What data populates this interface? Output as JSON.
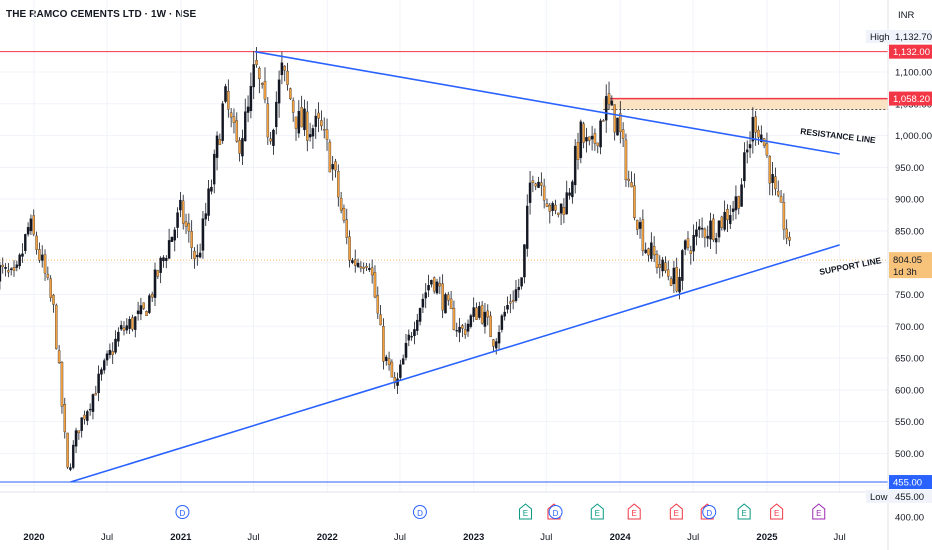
{
  "header": {
    "title": "THE RAMCO CEMENTS LTD · 1W · NSE",
    "currency": "INR"
  },
  "colors": {
    "up": "#131722",
    "down": "#f0a040",
    "trend": "#2962ff",
    "red": "#f23645",
    "zone_fill": "#fbe2c2",
    "axis_text": "#131722",
    "grid": "#f0f3fa"
  },
  "chart_data": {
    "type": "candlestick",
    "ylim": [
      394,
      1160
    ],
    "y_ticks": [
      400,
      450,
      500,
      550,
      600,
      650,
      700,
      750,
      800,
      850,
      900,
      950,
      1000,
      1050,
      1100
    ],
    "y_tick_labels": [
      "400.00",
      "450.00",
      "500.00",
      "550.00",
      "600.00",
      "650.00",
      "700.00",
      "750.00",
      "800.00",
      "850.00",
      "900.00",
      "950.00",
      "1,000.00",
      "1,050.00",
      "1,100.00"
    ],
    "x_ticks": [
      {
        "date": "2020-01-01",
        "label": "2020"
      },
      {
        "date": "2020-07-01",
        "label": "Jul"
      },
      {
        "date": "2021-01-01",
        "label": "2021"
      },
      {
        "date": "2021-07-01",
        "label": "Jul"
      },
      {
        "date": "2022-01-01",
        "label": "2022"
      },
      {
        "date": "2022-07-01",
        "label": "Jul"
      },
      {
        "date": "2023-01-01",
        "label": "2023"
      },
      {
        "date": "2023-07-01",
        "label": "Jul"
      },
      {
        "date": "2024-01-01",
        "label": "2024"
      },
      {
        "date": "2024-07-01",
        "label": "Jul"
      },
      {
        "date": "2025-01-01",
        "label": "2025"
      },
      {
        "date": "2025-07-01",
        "label": "Jul"
      }
    ],
    "price_path": [
      {
        "date": "2019-10-01",
        "price": 790
      },
      {
        "date": "2019-11-15",
        "price": 770
      },
      {
        "date": "2019-12-20",
        "price": 860
      },
      {
        "date": "2020-01-20",
        "price": 800
      },
      {
        "date": "2020-02-20",
        "price": 720
      },
      {
        "date": "2020-03-25",
        "price": 470
      },
      {
        "date": "2020-04-20",
        "price": 540
      },
      {
        "date": "2020-06-01",
        "price": 600
      },
      {
        "date": "2020-08-01",
        "price": 690
      },
      {
        "date": "2020-10-01",
        "price": 720
      },
      {
        "date": "2020-12-01",
        "price": 830
      },
      {
        "date": "2021-01-01",
        "price": 880
      },
      {
        "date": "2021-02-10",
        "price": 800
      },
      {
        "date": "2021-03-20",
        "price": 930
      },
      {
        "date": "2021-04-20",
        "price": 1060
      },
      {
        "date": "2021-05-20",
        "price": 980
      },
      {
        "date": "2021-06-20",
        "price": 1040
      },
      {
        "date": "2021-07-05",
        "price": 1110
      },
      {
        "date": "2021-08-10",
        "price": 1000
      },
      {
        "date": "2021-09-10",
        "price": 1100
      },
      {
        "date": "2021-10-20",
        "price": 1020
      },
      {
        "date": "2021-12-15",
        "price": 1010
      },
      {
        "date": "2022-01-15",
        "price": 950
      },
      {
        "date": "2022-03-01",
        "price": 800
      },
      {
        "date": "2022-04-15",
        "price": 810
      },
      {
        "date": "2022-05-20",
        "price": 660
      },
      {
        "date": "2022-06-20",
        "price": 600
      },
      {
        "date": "2022-08-10",
        "price": 720
      },
      {
        "date": "2022-09-20",
        "price": 780
      },
      {
        "date": "2022-11-01",
        "price": 720
      },
      {
        "date": "2022-12-01",
        "price": 690
      },
      {
        "date": "2023-01-15",
        "price": 730
      },
      {
        "date": "2023-02-20",
        "price": 680
      },
      {
        "date": "2023-04-01",
        "price": 740
      },
      {
        "date": "2023-05-01",
        "price": 770
      },
      {
        "date": "2023-05-25",
        "price": 950
      },
      {
        "date": "2023-06-25",
        "price": 920
      },
      {
        "date": "2023-07-20",
        "price": 870
      },
      {
        "date": "2023-08-20",
        "price": 900
      },
      {
        "date": "2023-09-25",
        "price": 1000
      },
      {
        "date": "2023-10-20",
        "price": 970
      },
      {
        "date": "2023-11-25",
        "price": 1050
      },
      {
        "date": "2023-12-25",
        "price": 1020
      },
      {
        "date": "2024-01-25",
        "price": 920
      },
      {
        "date": "2024-03-01",
        "price": 830
      },
      {
        "date": "2024-04-15",
        "price": 790
      },
      {
        "date": "2024-05-25",
        "price": 770
      },
      {
        "date": "2024-06-10",
        "price": 820
      },
      {
        "date": "2024-07-20",
        "price": 850
      },
      {
        "date": "2024-09-01",
        "price": 860
      },
      {
        "date": "2024-10-20",
        "price": 900
      },
      {
        "date": "2024-12-01",
        "price": 1030
      },
      {
        "date": "2024-12-20",
        "price": 1000
      },
      {
        "date": "2025-01-10",
        "price": 940
      },
      {
        "date": "2025-01-25",
        "price": 890
      },
      {
        "date": "2025-02-15",
        "price": 860
      },
      {
        "date": "2025-03-01",
        "price": 804
      }
    ],
    "drawings": {
      "resistance_line": {
        "label": "RESISTANCE LINE",
        "from": {
          "date": "2021-07-05",
          "price": 1132
        },
        "to": {
          "date": "2025-07-01",
          "price": 971
        }
      },
      "support_line": {
        "label": "SUPPORT LINE",
        "from": {
          "date": "2020-04-01",
          "price": 455
        },
        "to": {
          "date": "2025-07-01",
          "price": 828
        }
      },
      "horizontal_high": {
        "price": 1132
      },
      "horizontal_low": {
        "price": 455
      },
      "resistance_zone": {
        "from_date": "2023-11-20",
        "to_date": "2026-03-01",
        "top": 1058.2,
        "bottom": 1041
      },
      "last_price_line": {
        "price": 804.05
      }
    },
    "price_labels": {
      "high_label": "High",
      "high_value": "1,132.70",
      "low_label": "Low",
      "low_value": "455.00",
      "line_1132": "1,132.00",
      "line_1058": "1,058.20",
      "line_455": "455.00",
      "last_price": "804.05",
      "countdown": "1d 3h"
    },
    "events": [
      {
        "date": "2021-01-05",
        "letter": "D",
        "kind": "dividend"
      },
      {
        "date": "2022-08-20",
        "letter": "D",
        "kind": "dividend"
      },
      {
        "date": "2023-05-10",
        "letter": "E",
        "kind": "earnings_positive"
      },
      {
        "date": "2023-07-20",
        "letter": "E",
        "kind": "earnings_negative"
      },
      {
        "date": "2023-07-24",
        "letter": "D",
        "kind": "dividend"
      },
      {
        "date": "2023-11-05",
        "letter": "E",
        "kind": "earnings_positive"
      },
      {
        "date": "2024-02-05",
        "letter": "E",
        "kind": "earnings_negative"
      },
      {
        "date": "2024-05-20",
        "letter": "E",
        "kind": "earnings_negative"
      },
      {
        "date": "2024-08-05",
        "letter": "E",
        "kind": "earnings_negative"
      },
      {
        "date": "2024-08-10",
        "letter": "D",
        "kind": "dividend"
      },
      {
        "date": "2024-11-05",
        "letter": "E",
        "kind": "earnings_positive"
      },
      {
        "date": "2025-01-25",
        "letter": "E",
        "kind": "earnings_negative"
      },
      {
        "date": "2025-05-10",
        "letter": "E",
        "kind": "earnings_upcoming"
      }
    ]
  }
}
